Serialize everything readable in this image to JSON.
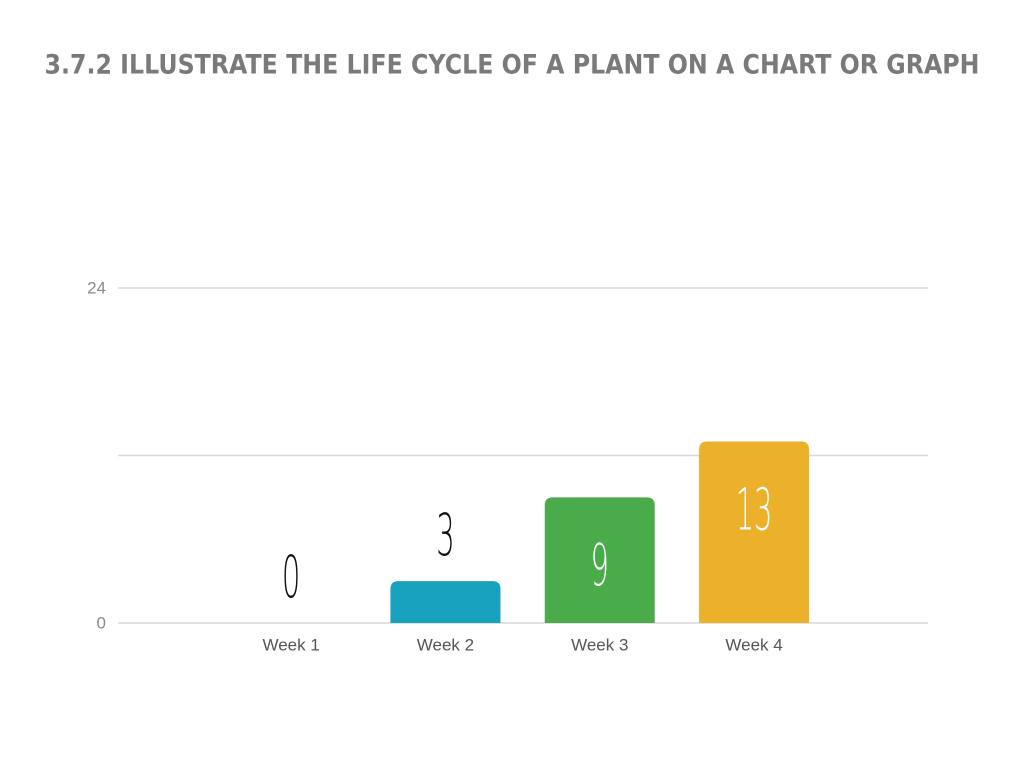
{
  "chart_data": {
    "type": "bar",
    "title": "3.7.2 ILLUSTRATE THE LIFE CYCLE OF A PLANT ON A CHART OR GRAPH",
    "categories": [
      "Week 1",
      "Week 2",
      "Week 3",
      "Week 4"
    ],
    "values": [
      0,
      3,
      9,
      13
    ],
    "colors": [
      "#d9534f",
      "#17a1bc",
      "#4aab4a",
      "#ebb12b"
    ],
    "ylim": [
      0,
      24
    ],
    "yticks": [
      0,
      24
    ],
    "grid_lines": [
      0,
      12,
      24
    ],
    "grid": true
  }
}
